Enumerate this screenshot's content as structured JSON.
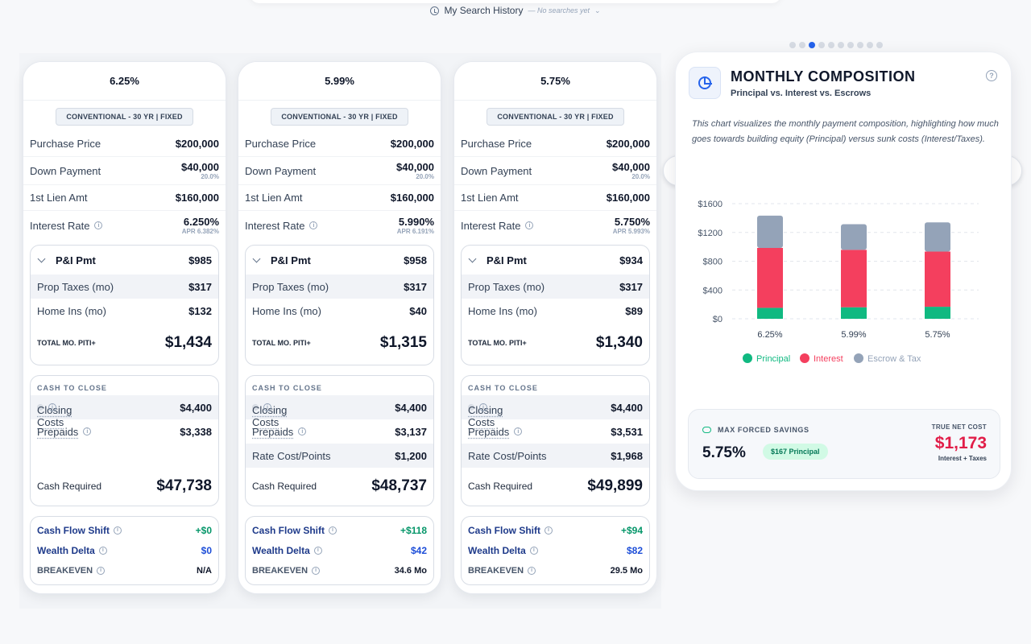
{
  "history": {
    "label": "My Search History",
    "sub": "— No searches yet"
  },
  "cards": [
    {
      "rate": "6.25%",
      "loan_type": "CONVENTIONAL - 30 YR | FIXED",
      "purchase_price_label": "Purchase Price",
      "purchase_price": "$200,000",
      "down_payment_label": "Down Payment",
      "down_payment": "$40,000",
      "down_pct": "20.0%",
      "lien_label": "1st Lien Amt",
      "lien": "$160,000",
      "interest_label": "Interest Rate",
      "interest": "6.250%",
      "apr": "APR 6.382%",
      "pi_label": "P&I Pmt",
      "pi": "$985",
      "tax_label": "Prop Taxes (mo)",
      "tax": "$317",
      "ins_label": "Home Ins (mo)",
      "ins": "$132",
      "total_label": "TOTAL MO. PITI+",
      "total": "$1,434",
      "ctc_title": "CASH TO CLOSE",
      "closing_label": "Closing Costs",
      "closing": "$4,400",
      "prepaids_label": "Prepaids",
      "prepaids": "$3,338",
      "points_label": "",
      "points": "",
      "cash_req_label": "Cash Required",
      "cash_req": "$47,738",
      "cfs_label": "Cash Flow Shift",
      "cfs": "+$0",
      "wd_label": "Wealth Delta",
      "wd": "$0",
      "be_label": "BREAKEVEN",
      "be": "N/A"
    },
    {
      "rate": "5.99%",
      "loan_type": "CONVENTIONAL - 30 YR | FIXED",
      "purchase_price_label": "Purchase Price",
      "purchase_price": "$200,000",
      "down_payment_label": "Down Payment",
      "down_payment": "$40,000",
      "down_pct": "20.0%",
      "lien_label": "1st Lien Amt",
      "lien": "$160,000",
      "interest_label": "Interest Rate",
      "interest": "5.990%",
      "apr": "APR 6.191%",
      "pi_label": "P&I Pmt",
      "pi": "$958",
      "tax_label": "Prop Taxes (mo)",
      "tax": "$317",
      "ins_label": "Home Ins (mo)",
      "ins": "$40",
      "total_label": "TOTAL MO. PITI+",
      "total": "$1,315",
      "ctc_title": "CASH TO CLOSE",
      "closing_label": "Closing Costs",
      "closing": "$4,400",
      "prepaids_label": "Prepaids",
      "prepaids": "$3,137",
      "points_label": "Rate Cost/Points",
      "points": "$1,200",
      "cash_req_label": "Cash Required",
      "cash_req": "$48,737",
      "cfs_label": "Cash Flow Shift",
      "cfs": "+$118",
      "wd_label": "Wealth Delta",
      "wd": "$42",
      "be_label": "BREAKEVEN",
      "be": "34.6 Mo"
    },
    {
      "rate": "5.75%",
      "loan_type": "CONVENTIONAL - 30 YR | FIXED",
      "purchase_price_label": "Purchase Price",
      "purchase_price": "$200,000",
      "down_payment_label": "Down Payment",
      "down_payment": "$40,000",
      "down_pct": "20.0%",
      "lien_label": "1st Lien Amt",
      "lien": "$160,000",
      "interest_label": "Interest Rate",
      "interest": "5.750%",
      "apr": "APR 5.993%",
      "pi_label": "P&I Pmt",
      "pi": "$934",
      "tax_label": "Prop Taxes (mo)",
      "tax": "$317",
      "ins_label": "Home Ins (mo)",
      "ins": "$89",
      "total_label": "TOTAL MO. PITI+",
      "total": "$1,340",
      "ctc_title": "CASH TO CLOSE",
      "closing_label": "Closing Costs",
      "closing": "$4,400",
      "prepaids_label": "Prepaids",
      "prepaids": "$3,531",
      "points_label": "Rate Cost/Points",
      "points": "$1,968",
      "cash_req_label": "Cash Required",
      "cash_req": "$49,899",
      "cfs_label": "Cash Flow Shift",
      "cfs": "+$94",
      "wd_label": "Wealth Delta",
      "wd": "$82",
      "be_label": "BREAKEVEN",
      "be": "29.5 Mo"
    }
  ],
  "carousel": {
    "dot_count": 10,
    "active_index": 2
  },
  "panel": {
    "title": "MONTHLY COMPOSITION",
    "subtitle": "Principal vs. Interest vs. Escrows",
    "description": "This chart visualizes the monthly payment composition, highlighting how much goes towards building equity (Principal) versus sunk costs (Interest/Taxes).",
    "summary": {
      "label": "MAX FORCED SAVINGS",
      "rate": "5.75%",
      "pill": "$167 Principal",
      "right_label": "TRUE NET COST",
      "right_value": "$1,173",
      "right_sub": "Interest + Taxes"
    }
  },
  "colors": {
    "principal": "#10b981",
    "interest": "#f43f5e",
    "escrow": "#94a3b8",
    "accent": "#2563eb"
  },
  "chart_data": {
    "type": "bar",
    "stacked": true,
    "categories": [
      "6.25%",
      "5.99%",
      "5.75%"
    ],
    "series": [
      {
        "name": "Principal",
        "values": [
          152,
          160,
          167
        ]
      },
      {
        "name": "Interest",
        "values": [
          833,
          798,
          767
        ]
      },
      {
        "name": "Escrow & Tax",
        "values": [
          449,
          357,
          406
        ]
      }
    ],
    "yticks": [
      "$0",
      "$400",
      "$800",
      "$1200",
      "$1600"
    ],
    "ylim": [
      0,
      1600
    ],
    "grid": true,
    "legend_position": "bottom"
  }
}
